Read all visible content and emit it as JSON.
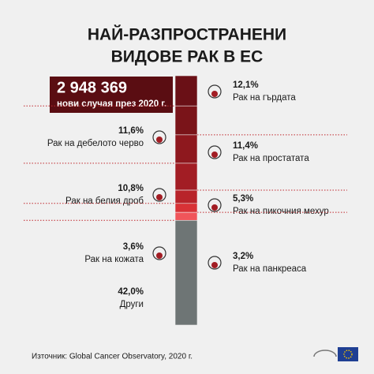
{
  "chart_data": {
    "type": "stacked_column",
    "title_lines": [
      "НАЙ-РАЗПРОСТРАНЕНИ",
      "ВИДОВЕ РАК В ЕС"
    ],
    "total_label": "2 948 369",
    "total_caption": "нови случая през 2020 г.",
    "categories": [
      "Рак на гърдата",
      "Рак на дебелото черво",
      "Рак на простатата",
      "Рак на белия дроб",
      "Рак на пикочния мехур",
      "Рак на кожата",
      "Рак на панкреаса",
      "Други"
    ],
    "values": [
      12.1,
      11.6,
      11.4,
      10.8,
      5.3,
      3.6,
      3.2,
      42.0
    ],
    "value_labels": [
      "12,1%",
      "11,6%",
      "11,4%",
      "10,8%",
      "5,3%",
      "3,6%",
      "3,2%",
      "42,0%"
    ],
    "colors": [
      "#6a1016",
      "#7a1419",
      "#8e181e",
      "#a21d24",
      "#b8242a",
      "#d83236",
      "#f0555a",
      "#6e7575"
    ],
    "ylim": [
      0,
      100
    ],
    "source": "Източник: Global Cancer Observatory, 2020 г."
  }
}
